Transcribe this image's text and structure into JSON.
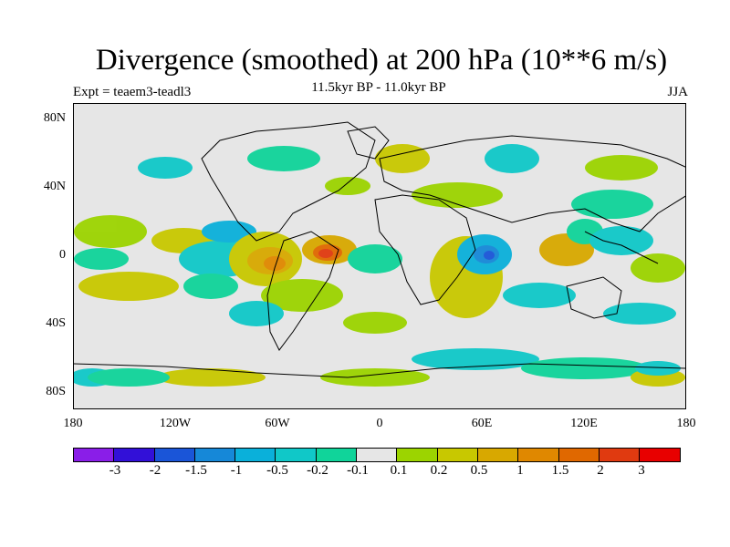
{
  "title": "Divergence (smoothed) at 200 hPa (10**6 m/s)",
  "experiment": "Expt = teaem3-teadl3",
  "period": "11.5kyr BP - 11.0kyr BP",
  "season": "JJA",
  "y_axis": [
    "80N",
    "40N",
    "0",
    "40S",
    "80S"
  ],
  "x_axis": [
    "180",
    "120W",
    "60W",
    "0",
    "60E",
    "120E",
    "180"
  ],
  "colorbar": {
    "colors": [
      "#8a1ee8",
      "#3210d8",
      "#1a55d8",
      "#1688d8",
      "#0ab0da",
      "#10c8c8",
      "#10d49a",
      "#e6e6e6",
      "#9cd400",
      "#c8c800",
      "#d8a800",
      "#e08800",
      "#e06800",
      "#e03a10",
      "#e80000"
    ],
    "labels": [
      "-3",
      "-2",
      "-1.5",
      "-1",
      "-0.5",
      "-0.2",
      "-0.1",
      "0.1",
      "0.2",
      "0.5",
      "1",
      "1.5",
      "2",
      "3"
    ]
  }
}
